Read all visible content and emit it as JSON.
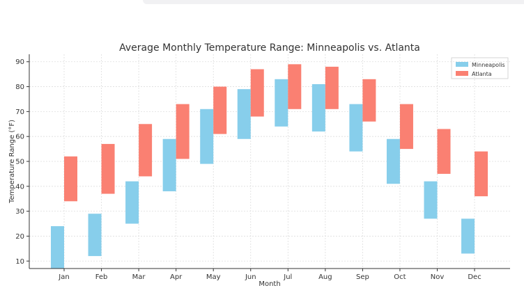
{
  "chart_data": {
    "type": "bar",
    "subtype": "floating-range",
    "title": "Average Monthly Temperature Range: Minneapolis vs. Atlanta",
    "xlabel": "Month",
    "ylabel": "Temperature Range (°F)",
    "ylim": [
      7,
      93
    ],
    "yticks": [
      10,
      20,
      30,
      40,
      50,
      60,
      70,
      80,
      90
    ],
    "grid": true,
    "legend_position": "top-right",
    "categories": [
      "Jan",
      "Feb",
      "Mar",
      "Apr",
      "May",
      "Jun",
      "Jul",
      "Aug",
      "Sep",
      "Oct",
      "Nov",
      "Dec"
    ],
    "series": [
      {
        "name": "Minneapolis",
        "color": "#87ceeb",
        "low": [
          7,
          12,
          25,
          38,
          49,
          59,
          64,
          62,
          54,
          41,
          27,
          13
        ],
        "high": [
          24,
          29,
          42,
          59,
          71,
          79,
          83,
          81,
          73,
          59,
          42,
          27
        ]
      },
      {
        "name": "Atlanta",
        "color": "#fa8072",
        "low": [
          34,
          37,
          44,
          51,
          61,
          68,
          71,
          71,
          66,
          55,
          45,
          36
        ],
        "high": [
          52,
          57,
          65,
          73,
          80,
          87,
          89,
          88,
          83,
          73,
          63,
          54
        ]
      }
    ]
  }
}
